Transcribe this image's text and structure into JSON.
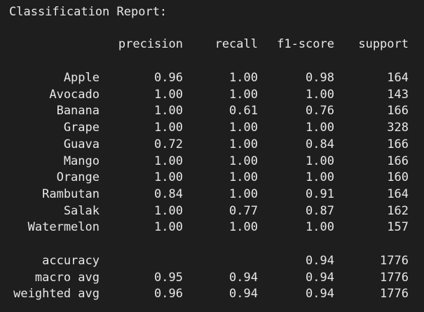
{
  "title": "Classification Report:",
  "headers": [
    "precision",
    "recall",
    "f1-score",
    "support"
  ],
  "rows": [
    {
      "label": "Apple",
      "precision": "0.96",
      "recall": "1.00",
      "f1": "0.98",
      "support": "164"
    },
    {
      "label": "Avocado",
      "precision": "1.00",
      "recall": "1.00",
      "f1": "1.00",
      "support": "143"
    },
    {
      "label": "Banana",
      "precision": "1.00",
      "recall": "0.61",
      "f1": "0.76",
      "support": "166"
    },
    {
      "label": "Grape",
      "precision": "1.00",
      "recall": "1.00",
      "f1": "1.00",
      "support": "328"
    },
    {
      "label": "Guava",
      "precision": "0.72",
      "recall": "1.00",
      "f1": "0.84",
      "support": "166"
    },
    {
      "label": "Mango",
      "precision": "1.00",
      "recall": "1.00",
      "f1": "1.00",
      "support": "166"
    },
    {
      "label": "Orange",
      "precision": "1.00",
      "recall": "1.00",
      "f1": "1.00",
      "support": "160"
    },
    {
      "label": "Rambutan",
      "precision": "0.84",
      "recall": "1.00",
      "f1": "0.91",
      "support": "164"
    },
    {
      "label": "Salak",
      "precision": "1.00",
      "recall": "0.77",
      "f1": "0.87",
      "support": "162"
    },
    {
      "label": "Watermelon",
      "precision": "1.00",
      "recall": "1.00",
      "f1": "1.00",
      "support": "157"
    }
  ],
  "summary": [
    {
      "label": "accuracy",
      "precision": "",
      "recall": "",
      "f1": "0.94",
      "support": "1776"
    },
    {
      "label": "macro avg",
      "precision": "0.95",
      "recall": "0.94",
      "f1": "0.94",
      "support": "1776"
    },
    {
      "label": "weighted avg",
      "precision": "0.96",
      "recall": "0.94",
      "f1": "0.94",
      "support": "1776"
    }
  ],
  "colors": {
    "background": "#1e1e1e",
    "text": "#e8e8e8"
  }
}
